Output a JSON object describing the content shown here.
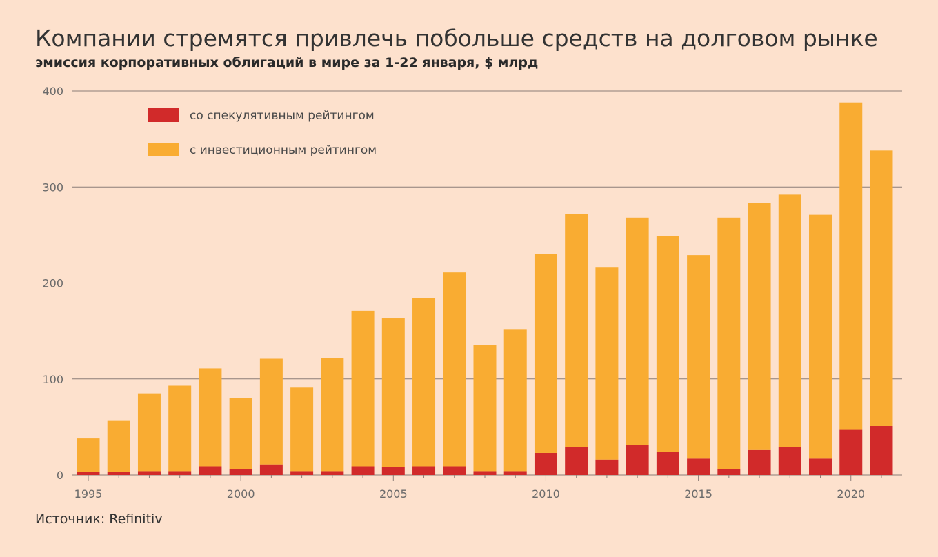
{
  "title": "Компании стремятся привлечь побольше средств на долговом рынке",
  "subtitle": "эмиссия корпоративных облигаций в мире за 1-22 января, $ млрд",
  "source": "Источник: Refinitiv",
  "colors": {
    "speculative": "#d12a2a",
    "investment": "#f9ac32",
    "grid": "#8c7d78",
    "background": "#fde1cd"
  },
  "chart_data": {
    "type": "bar",
    "stacked": true,
    "categories": [
      1995,
      1996,
      1997,
      1998,
      1999,
      2000,
      2001,
      2002,
      2003,
      2004,
      2005,
      2006,
      2007,
      2008,
      2009,
      2010,
      2011,
      2012,
      2013,
      2014,
      2015,
      2016,
      2017,
      2018,
      2019,
      2020,
      2021
    ],
    "x_tick_labels": [
      "1995",
      "2000",
      "2005",
      "2010",
      "2015",
      "2020"
    ],
    "y_ticks": [
      0,
      100,
      200,
      300,
      400
    ],
    "ylim": [
      0,
      400
    ],
    "grid": true,
    "legend_position": "top-left",
    "series": [
      {
        "name": "со спекулятивным рейтингом",
        "color_key": "speculative",
        "values": [
          3,
          3,
          4,
          4,
          9,
          6,
          11,
          4,
          4,
          9,
          8,
          9,
          9,
          4,
          4,
          23,
          29,
          16,
          31,
          24,
          17,
          6,
          26,
          29,
          17,
          47,
          51
        ]
      },
      {
        "name": "с инвестиционным рейтингом",
        "color_key": "investment",
        "values": [
          35,
          54,
          81,
          89,
          102,
          74,
          110,
          87,
          118,
          162,
          155,
          175,
          202,
          131,
          148,
          207,
          243,
          200,
          237,
          225,
          212,
          262,
          257,
          263,
          254,
          341,
          287
        ]
      }
    ]
  }
}
